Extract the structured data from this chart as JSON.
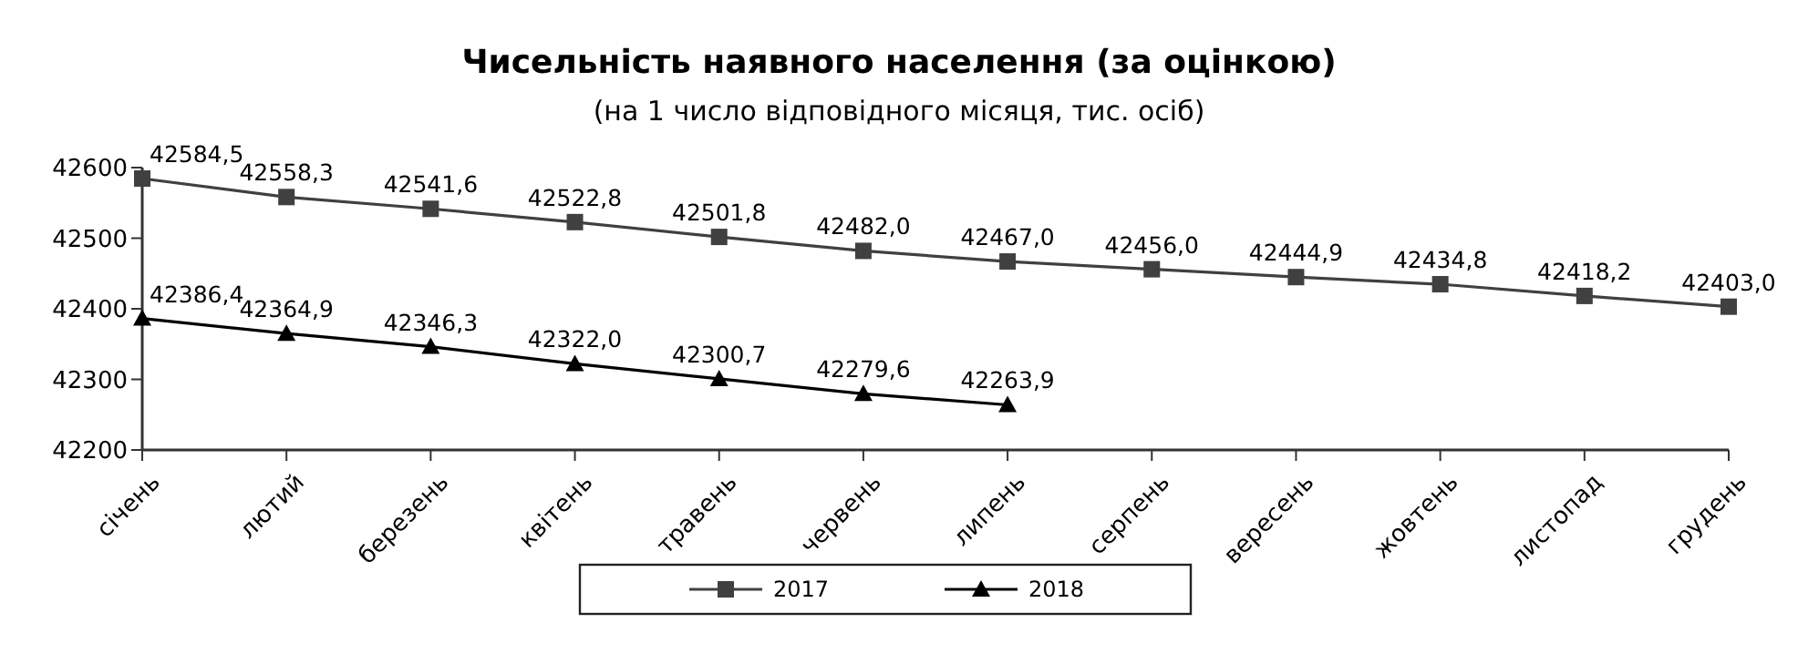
{
  "chart_data": {
    "type": "line",
    "title": "Чисельність наявного населення (за оцінкою)",
    "subtitle": "(на 1 число відповідного місяця, тис. осіб)",
    "categories": [
      "січень",
      "лютий",
      "березень",
      "квітень",
      "травень",
      "червень",
      "липень",
      "серпень",
      "вересень",
      "жовтень",
      "листопад",
      "грудень"
    ],
    "series": [
      {
        "name": "2017",
        "color": "#404040",
        "marker": "square",
        "values": [
          42584.5,
          42558.3,
          42541.6,
          42522.8,
          42501.8,
          42482.0,
          42467.0,
          42456.0,
          42444.9,
          42434.8,
          42418.2,
          42403.0
        ],
        "value_labels": [
          "42584,5",
          "42558,3",
          "42541,6",
          "42522,8",
          "42501,8",
          "42482,0",
          "42467,0",
          "42456,0",
          "42444,9",
          "42434,8",
          "42418,2",
          "42403,0"
        ]
      },
      {
        "name": "2018",
        "color": "#000000",
        "marker": "triangle",
        "values": [
          42386.4,
          42364.9,
          42346.3,
          42322.0,
          42300.7,
          42279.6,
          42263.9,
          null,
          null,
          null,
          null,
          null
        ],
        "value_labels": [
          "42386,4",
          "42364,9",
          "42346,3",
          "42322,0",
          "42300,7",
          "42279,6",
          "42263,9",
          null,
          null,
          null,
          null,
          null
        ]
      }
    ],
    "ylim": [
      42200,
      42600
    ],
    "yticks": [
      42200,
      42300,
      42400,
      42500,
      42600
    ],
    "grid": false,
    "legend": "bottom"
  }
}
